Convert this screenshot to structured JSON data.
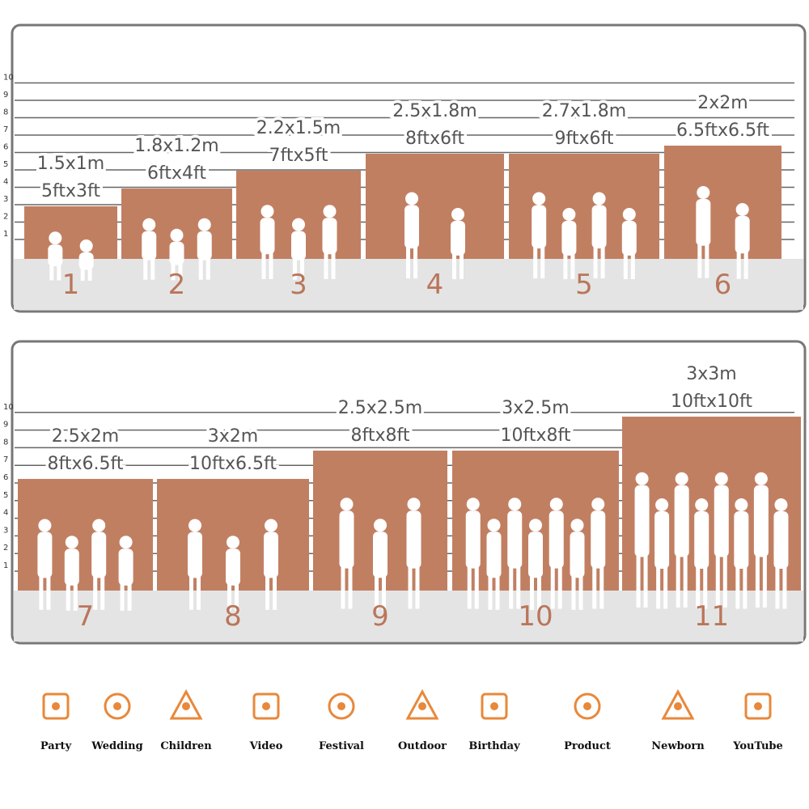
{
  "scale": [
    1,
    2,
    3,
    4,
    5,
    6,
    7,
    8,
    9,
    10
  ],
  "panels": [
    {
      "sizes": [
        {
          "number": "1",
          "metric": "1.5x1m",
          "imperial": "5ftx3ft"
        },
        {
          "number": "2",
          "metric": "1.8x1.2m",
          "imperial": "6ftx4ft"
        },
        {
          "number": "3",
          "metric": "2.2x1.5m",
          "imperial": "7ftx5ft"
        },
        {
          "number": "4",
          "metric": "2.5x1.8m",
          "imperial": "8ftx6ft"
        },
        {
          "number": "5",
          "metric": "2.7x1.8m",
          "imperial": "9ftx6ft"
        },
        {
          "number": "6",
          "metric": "2x2m",
          "imperial": "6.5ftx6.5ft"
        }
      ]
    },
    {
      "sizes": [
        {
          "number": "7",
          "metric": "2.5x2m",
          "imperial": "8ftx6.5ft"
        },
        {
          "number": "8",
          "metric": "3x2m",
          "imperial": "10ftx6.5ft"
        },
        {
          "number": "9",
          "metric": "2.5x2.5m",
          "imperial": "8ftx8ft"
        },
        {
          "number": "10",
          "metric": "3x2.5m",
          "imperial": "10ftx8ft"
        },
        {
          "number": "11",
          "metric": "3x3m",
          "imperial": "10ftx10ft"
        }
      ]
    }
  ],
  "uses": [
    "Party",
    "Wedding",
    "Children",
    "Video",
    "Festival",
    "Outdoor",
    "Birthday",
    "Product",
    "Newborn",
    "YouTube"
  ]
}
